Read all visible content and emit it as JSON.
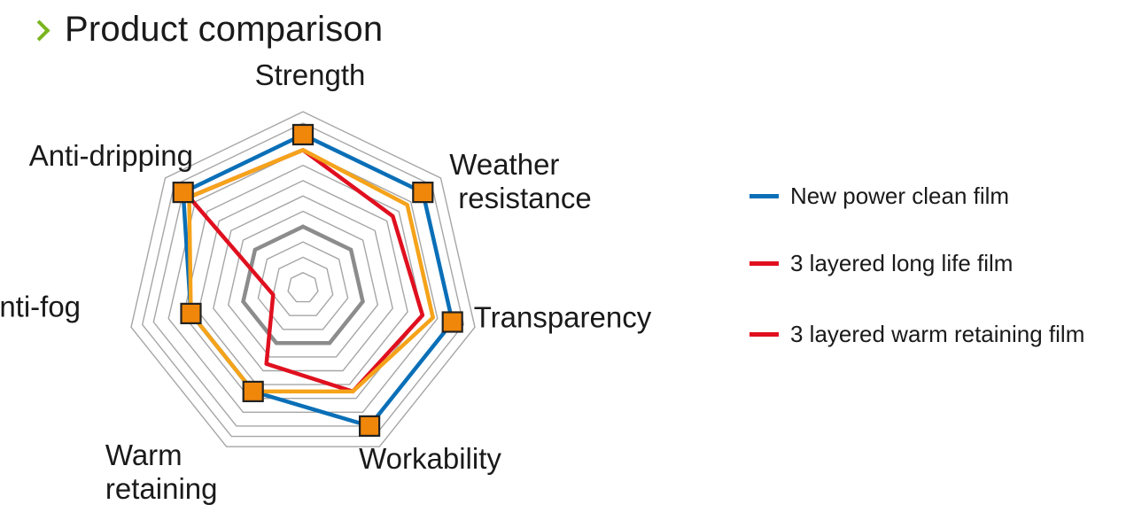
{
  "header": {
    "title": "Product comparison"
  },
  "colors": {
    "accent": "#7ab51d",
    "grid": "#a6a6a6",
    "grid_emphasis": "#8c8c8c",
    "marker_fill": "#f0860a",
    "marker_stroke": "#222222"
  },
  "chart_data": {
    "type": "radar",
    "title": "",
    "axes": [
      "Strength",
      "Weather resistance",
      "Transparency",
      "Workability",
      "Warm retaining",
      "Anti-fog",
      "Anti-dripping"
    ],
    "axis_label_lines": [
      [
        "Strength"
      ],
      [
        "Weather",
        "resistance"
      ],
      [
        "Transparency"
      ],
      [
        "Workability"
      ],
      [
        "Warm",
        "retaining"
      ],
      [
        "Anti-fog"
      ],
      [
        "Anti-dripping"
      ]
    ],
    "scale": [
      0,
      10
    ],
    "grid_rings": 10,
    "emphasized_ring": 4,
    "series": [
      {
        "name": "New power clean film",
        "color": "#0a6fb7",
        "values": [
          10,
          10,
          10,
          10,
          7.5,
          7.5,
          10
        ],
        "markers": true
      },
      {
        "name": "3 layered long life film",
        "color": "#e0101f",
        "values": [
          9,
          7.5,
          8,
          7.5,
          5.5,
          2,
          9.5
        ],
        "markers": false
      },
      {
        "name": "3 layered warm retaining film",
        "color": "#e0101f",
        "values": [
          9,
          8.7,
          8.7,
          7.5,
          7.5,
          7.5,
          9.5
        ],
        "markers": false,
        "drawn_color": "#f5a31a"
      }
    ],
    "legend": {
      "position": "right",
      "entries": [
        "New power clean film",
        "3 layered long life film",
        "3 layered warm retaining film"
      ]
    }
  }
}
